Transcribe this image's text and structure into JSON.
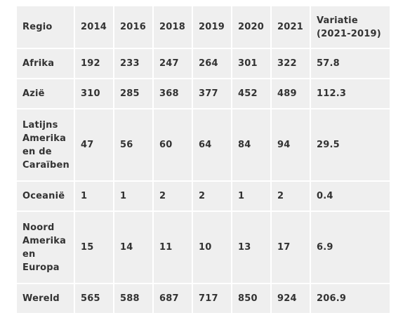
{
  "table": {
    "headers": [
      "Regio",
      "2014",
      "2016",
      "2018",
      "2019",
      "2020",
      "2021",
      "Variatie (2021-2019)"
    ],
    "rows": [
      [
        "Afrika",
        "192",
        "233",
        "247",
        "264",
        "301",
        "322",
        "57.8"
      ],
      [
        "Azië",
        "310",
        "285",
        "368",
        "377",
        "452",
        "489",
        "112.3"
      ],
      [
        "Latijns Amerika en de Caraïben",
        "47",
        "56",
        "60",
        "64",
        "84",
        "94",
        "29.5"
      ],
      [
        "Oceanië",
        "1",
        "1",
        "2",
        "2",
        "1",
        "2",
        "0.4"
      ],
      [
        "Noord Amerika en Europa",
        "15",
        "14",
        "11",
        "10",
        "13",
        "17",
        "6.9"
      ],
      [
        "Wereld",
        "565",
        "588",
        "687",
        "717",
        "850",
        "924",
        "206.9"
      ]
    ]
  }
}
